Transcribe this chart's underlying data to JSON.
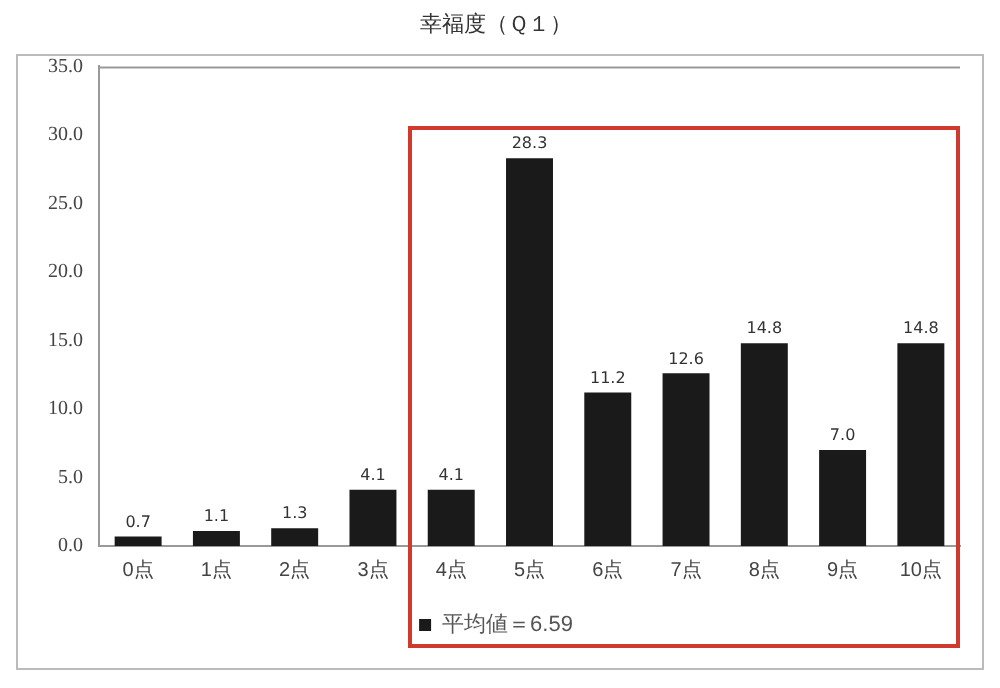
{
  "chart_data": {
    "type": "bar",
    "title": "幸福度（Ｑ１）",
    "categories": [
      "0点",
      "1点",
      "2点",
      "3点",
      "4点",
      "5点",
      "6点",
      "7点",
      "8点",
      "9点",
      "10点"
    ],
    "series": [
      {
        "name": "平均値＝6.59",
        "color": "#1a1a1a",
        "values": [
          0.7,
          1.1,
          1.3,
          4.1,
          4.1,
          28.3,
          11.2,
          12.6,
          14.8,
          7.0,
          14.8
        ],
        "value_labels": [
          "0.7",
          "1.1",
          "1.3",
          "4.1",
          "4.1",
          "28.3",
          "11.2",
          "12.6",
          "14.8",
          "7.0",
          "14.8"
        ]
      }
    ],
    "ylim": [
      0,
      35
    ],
    "yticks": [
      {
        "value": 0,
        "label": "0.0"
      },
      {
        "value": 5,
        "label": "5.0"
      },
      {
        "value": 10,
        "label": "10.0"
      },
      {
        "value": 15,
        "label": "15.0"
      },
      {
        "value": 20,
        "label": "20.0"
      },
      {
        "value": 25,
        "label": "25.0"
      },
      {
        "value": 30,
        "label": "30.0"
      },
      {
        "value": 35,
        "label": "35.0"
      }
    ],
    "grid": false,
    "legend": "bottom"
  }
}
